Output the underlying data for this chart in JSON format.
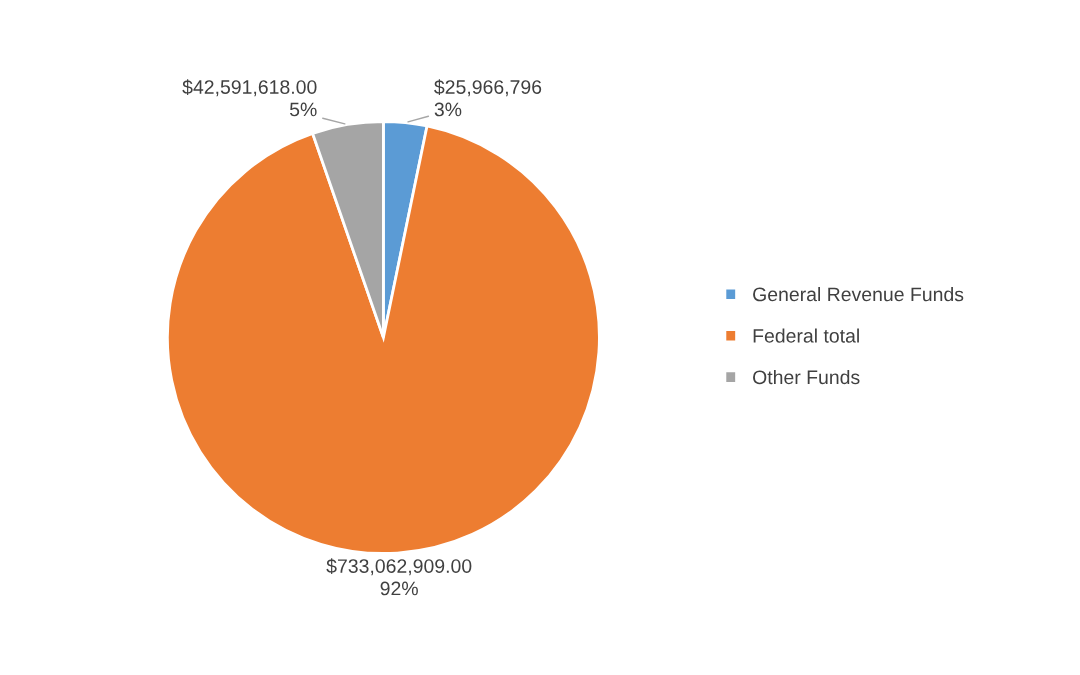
{
  "chart_data": {
    "type": "pie",
    "categories": [
      "General Revenue Funds",
      "Federal total",
      "Other Funds"
    ],
    "values": [
      25966796,
      733062909,
      42591618
    ],
    "colors": [
      "#5b9bd5",
      "#ed7d31",
      "#a5a5a5"
    ],
    "value_labels": [
      "$25,966,796\n3%",
      "$733,062,909.00\n92%",
      "$42,591,618.00\n5%"
    ],
    "legend": "right"
  }
}
